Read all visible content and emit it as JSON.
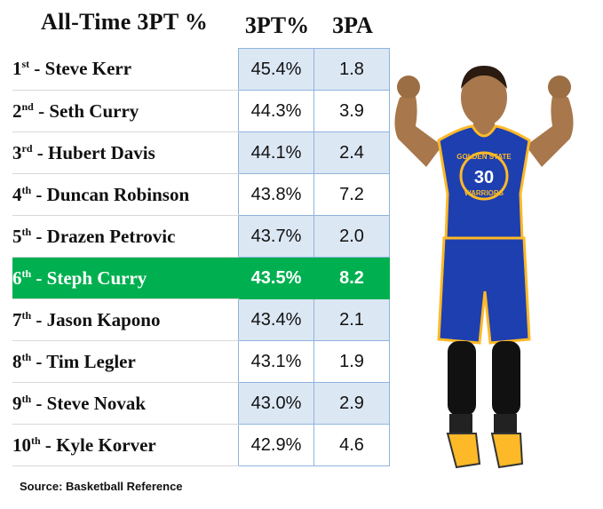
{
  "chart_data": {
    "type": "table",
    "title": "All-Time 3PT %",
    "columns": [
      "3PT%",
      "3PA"
    ],
    "rows": [
      {
        "rank": "1",
        "suffix": "st",
        "name": "Steve Kerr",
        "pct": "45.4%",
        "pa": "1.8"
      },
      {
        "rank": "2",
        "suffix": "nd",
        "name": "Seth Curry",
        "pct": "44.3%",
        "pa": "3.9"
      },
      {
        "rank": "3",
        "suffix": "rd",
        "name": "Hubert Davis",
        "pct": "44.1%",
        "pa": "2.4"
      },
      {
        "rank": "4",
        "suffix": "th",
        "name": "Duncan Robinson",
        "pct": "43.8%",
        "pa": "7.2"
      },
      {
        "rank": "5",
        "suffix": "th",
        "name": "Drazen Petrovic",
        "pct": "43.7%",
        "pa": "2.0"
      },
      {
        "rank": "6",
        "suffix": "th",
        "name": "Steph Curry",
        "pct": "43.5%",
        "pa": "8.2",
        "highlight": true
      },
      {
        "rank": "7",
        "suffix": "th",
        "name": "Jason Kapono",
        "pct": "43.4%",
        "pa": "2.1"
      },
      {
        "rank": "8",
        "suffix": "th",
        "name": "Tim Legler",
        "pct": "43.1%",
        "pa": "1.9"
      },
      {
        "rank": "9",
        "suffix": "th",
        "name": "Steve Novak",
        "pct": "43.0%",
        "pa": "2.9"
      },
      {
        "rank": "10",
        "suffix": "th",
        "name": "Kyle Korver",
        "pct": "42.9%",
        "pa": "4.6"
      }
    ],
    "source": "Source: Basketball Reference",
    "jersey": {
      "team_line1": "GOLDEN STATE",
      "team_line2": "WARRIORS",
      "number": "30"
    }
  },
  "colors": {
    "highlight": "#00b050",
    "cell_tint": "#dce7f4",
    "cell_border": "#8fb4dc",
    "jersey_blue": "#1d3fb0",
    "jersey_gold": "#fdb927"
  }
}
